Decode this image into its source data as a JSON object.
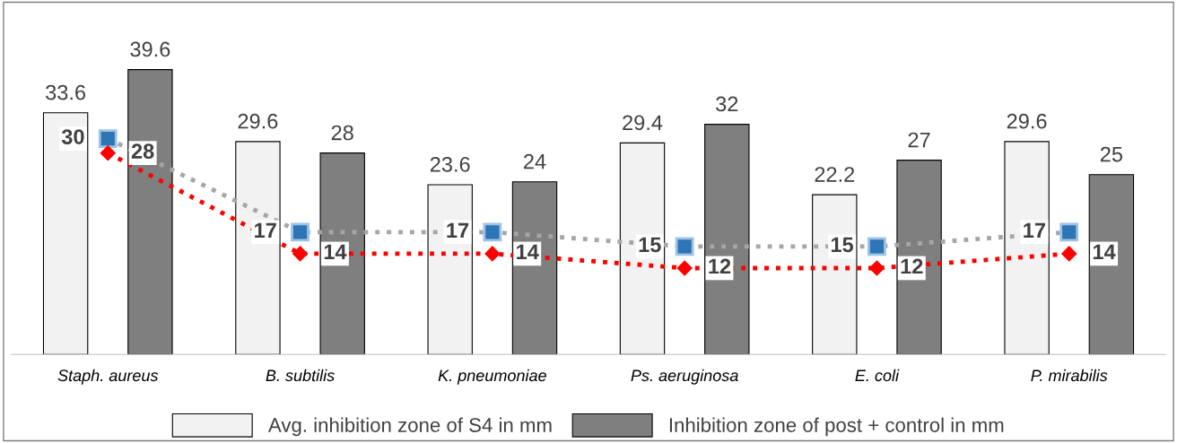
{
  "chart_data": {
    "type": "bar",
    "categories": [
      "Staph. aureus",
      "B. subtilis",
      "K. pneumoniae",
      "Ps. aeruginosa",
      "E. coli",
      "P. mirabilis"
    ],
    "series": [
      {
        "name": "Avg. inhibition zone of S4 in mm",
        "color": "#f2f2f2",
        "values": [
          33.6,
          29.6,
          23.6,
          29.4,
          22.2,
          29.6
        ]
      },
      {
        "name": "Inhibition zone of post + control in mm",
        "color": "#7f7f7f",
        "values": [
          39.6,
          28,
          24,
          32,
          27,
          25
        ]
      },
      {
        "type": "line",
        "color": "#a6a6a6",
        "marker": "square",
        "line_style": "dotted",
        "values": [
          30,
          17,
          17,
          15,
          15,
          17
        ]
      },
      {
        "type": "line",
        "color": "#ff0000",
        "marker": "diamond",
        "line_style": "dotted",
        "values": [
          28,
          14,
          14,
          12,
          12,
          14
        ]
      }
    ],
    "tick_labels": "x",
    "data_labels": true,
    "grid": false,
    "legend": "bottom"
  }
}
